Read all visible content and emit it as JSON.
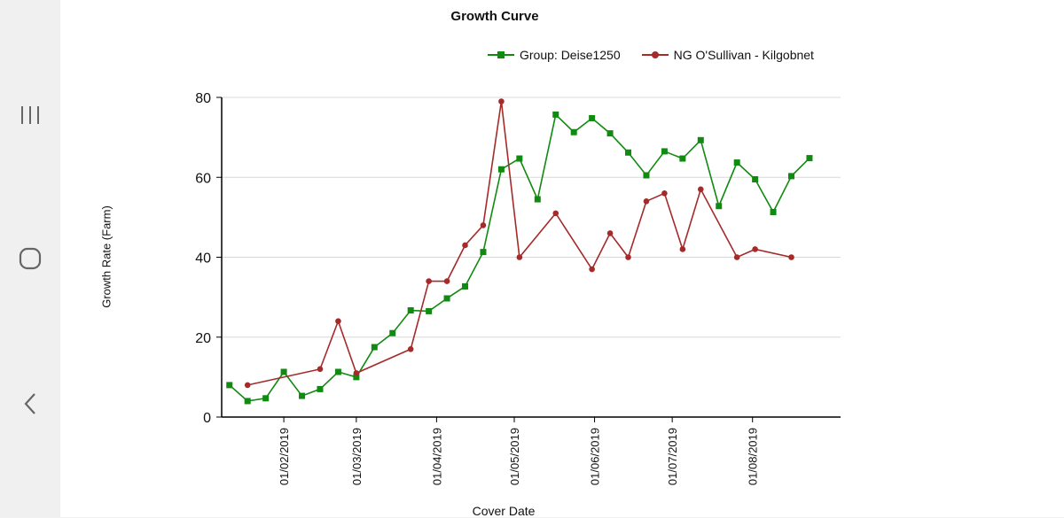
{
  "nav": {
    "recents_icon": "recents-icon",
    "home_icon": "home-icon",
    "back_icon": "back-icon"
  },
  "colors": {
    "group": "#108a10",
    "farm": "#a52a2a",
    "grid": "#d8d8d8",
    "axis": "#000000"
  },
  "chart_data": {
    "type": "line",
    "title": "Growth Curve",
    "xlabel": "Cover Date",
    "ylabel": "Growth Rate (Farm)",
    "ylim": [
      0,
      80
    ],
    "yticks": [
      0,
      20,
      40,
      60,
      80
    ],
    "xlim": [
      "2019-01-08",
      "2019-09-04"
    ],
    "xticks": [
      {
        "date": "2019-02-01",
        "label": "01/02/2019"
      },
      {
        "date": "2019-03-01",
        "label": "01/03/2019"
      },
      {
        "date": "2019-04-01",
        "label": "01/04/2019"
      },
      {
        "date": "2019-05-01",
        "label": "01/05/2019"
      },
      {
        "date": "2019-06-01",
        "label": "01/06/2019"
      },
      {
        "date": "2019-07-01",
        "label": "01/07/2019"
      },
      {
        "date": "2019-08-01",
        "label": "01/08/2019"
      }
    ],
    "grid": true,
    "legend_position": "top-right",
    "series": [
      {
        "name": "Group: Deise1250",
        "color": "#108a10",
        "marker": "square",
        "x": [
          "2019-01-11",
          "2019-01-18",
          "2019-01-25",
          "2019-02-01",
          "2019-02-08",
          "2019-02-15",
          "2019-02-22",
          "2019-03-01",
          "2019-03-08",
          "2019-03-15",
          "2019-03-22",
          "2019-03-29",
          "2019-04-05",
          "2019-04-12",
          "2019-04-19",
          "2019-04-26",
          "2019-05-03",
          "2019-05-10",
          "2019-05-17",
          "2019-05-24",
          "2019-05-31",
          "2019-06-07",
          "2019-06-14",
          "2019-06-21",
          "2019-06-28",
          "2019-07-05",
          "2019-07-12",
          "2019-07-19",
          "2019-07-26",
          "2019-08-02",
          "2019-08-09",
          "2019-08-16",
          "2019-08-23"
        ],
        "y": [
          8,
          4,
          4.7,
          11.3,
          5.3,
          7,
          11.3,
          10,
          17.5,
          21,
          26.7,
          26.5,
          29.7,
          32.7,
          41.3,
          62,
          64.7,
          54.5,
          75.7,
          71.3,
          74.8,
          71,
          66.2,
          60.5,
          66.5,
          64.7,
          69.3,
          52.8,
          63.7,
          59.5,
          51.3,
          60.3,
          64.8
        ]
      },
      {
        "name": "NG O'Sullivan - Kilgobnet",
        "color": "#a52a2a",
        "marker": "circle",
        "x": [
          "2019-01-18",
          "2019-02-15",
          "2019-02-22",
          "2019-03-01",
          "2019-03-22",
          "2019-03-29",
          "2019-04-05",
          "2019-04-12",
          "2019-04-19",
          "2019-04-26",
          "2019-05-03",
          "2019-05-17",
          "2019-05-31",
          "2019-06-07",
          "2019-06-14",
          "2019-06-21",
          "2019-06-28",
          "2019-07-05",
          "2019-07-12",
          "2019-07-26",
          "2019-08-02",
          "2019-08-16"
        ],
        "y": [
          8,
          12,
          24,
          11,
          17,
          34,
          34,
          43,
          48,
          79,
          40,
          51,
          37,
          46,
          40,
          54,
          56,
          42,
          57,
          40,
          42,
          40
        ]
      }
    ]
  }
}
